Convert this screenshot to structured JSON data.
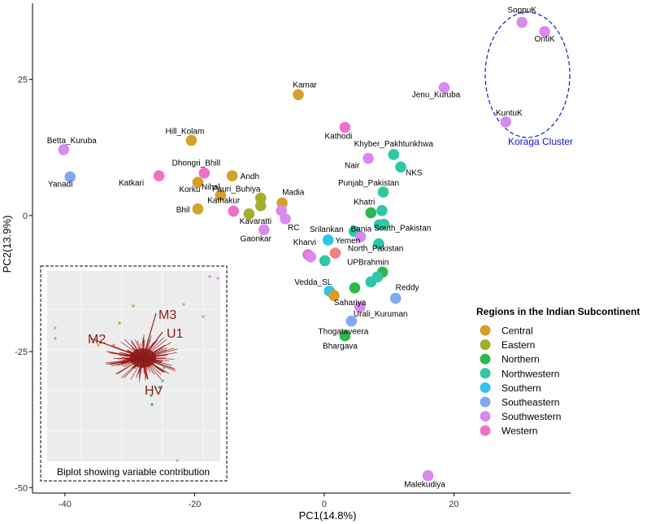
{
  "chart_data": {
    "type": "scatter",
    "xlabel": "PC1(14.8%)",
    "ylabel": "PC2(13.9%)",
    "xlim": [
      -45,
      38
    ],
    "ylim": [
      -51,
      39
    ],
    "x_ticks": [
      -40,
      -20,
      0,
      20
    ],
    "y_ticks": [
      -50,
      -25,
      0,
      25
    ],
    "grid": false,
    "legend": {
      "title": "Regions in the Indian Subcontinent",
      "position": "right",
      "entries": [
        {
          "name": "Central",
          "color": "#D4A02A"
        },
        {
          "name": "Eastern",
          "color": "#A3AE2E"
        },
        {
          "name": "Northern",
          "color": "#2DB84E"
        },
        {
          "name": "Northwestern",
          "color": "#2FC7A6"
        },
        {
          "name": "Southern",
          "color": "#2FC3E8"
        },
        {
          "name": "Southeastern",
          "color": "#7FAAF2"
        },
        {
          "name": "Southwestern",
          "color": "#D98AF0"
        },
        {
          "name": "Western",
          "color": "#F070C9"
        }
      ]
    },
    "points": [
      {
        "label": "SoppuK",
        "x": 30.5,
        "y": 35.5,
        "region": "Southwestern"
      },
      {
        "label": "OntiK",
        "x": 34,
        "y": 33.8,
        "region": "Southwestern"
      },
      {
        "label": "KuntuK",
        "x": 28,
        "y": 17.2,
        "region": "Southwestern"
      },
      {
        "label": "Jenu_Kuruba",
        "x": 18.5,
        "y": 23.5,
        "region": "Southwestern"
      },
      {
        "label": "Kamar",
        "x": -4,
        "y": 22.2,
        "region": "Central"
      },
      {
        "label": "Kathodi",
        "x": 3.2,
        "y": 16.2,
        "region": "Western"
      },
      {
        "label": "Hill_Kolam",
        "x": -20.5,
        "y": 13.8,
        "region": "Central"
      },
      {
        "label": "Betta_Kuruba",
        "x": -40.2,
        "y": 12.1,
        "region": "Southwestern"
      },
      {
        "label": "Yanadi",
        "x": -39.2,
        "y": 7.1,
        "region": "Southeastern"
      },
      {
        "label": "Katkari",
        "x": -25.5,
        "y": 7.3,
        "region": "Western"
      },
      {
        "label": "Dhongri_Bhill",
        "x": -18.5,
        "y": 7.8,
        "region": "Western"
      },
      {
        "label": "Andh",
        "x": -14.2,
        "y": 7.3,
        "region": "Central"
      },
      {
        "label": "Korku",
        "x": -19.5,
        "y": 6.1,
        "region": "Central"
      },
      {
        "label": "Nihal",
        "x": -16,
        "y": 3.7,
        "region": "Central"
      },
      {
        "label": "Bhil",
        "x": -19.5,
        "y": 1.2,
        "region": "Central"
      },
      {
        "label": "Kathakur",
        "x": -14,
        "y": 0.8,
        "region": "Western"
      },
      {
        "label": "Pauri_Buhiya",
        "x": -9.8,
        "y": 3.2,
        "region": "Eastern"
      },
      {
        "label": "",
        "x": -9.8,
        "y": 1.8,
        "region": "Eastern"
      },
      {
        "label": "Kavaratti",
        "x": -11.6,
        "y": 0.3,
        "region": "Eastern"
      },
      {
        "label": "Madia",
        "x": -6.5,
        "y": 2.3,
        "region": "Central"
      },
      {
        "label": "",
        "x": -6.6,
        "y": 0.9,
        "region": "Southwestern"
      },
      {
        "label": "RC",
        "x": -6,
        "y": -0.6,
        "region": "Southwestern"
      },
      {
        "label": "Gaonkar",
        "x": -9.3,
        "y": -2.6,
        "region": "Southwestern"
      },
      {
        "label": "Kharvi",
        "x": -2.5,
        "y": -7.2,
        "region": "Western"
      },
      {
        "label": "",
        "x": -2.1,
        "y": -7.6,
        "region": "Southwestern"
      },
      {
        "label": "Srilankan",
        "x": 0.6,
        "y": -4.5,
        "region": "Southern"
      },
      {
        "label": "Yemen",
        "x": 1.7,
        "y": -6.9,
        "region": "Yemen"
      },
      {
        "label": "",
        "x": 0.1,
        "y": -8.3,
        "region": "Northwestern"
      },
      {
        "label": "Vedda_SL",
        "x": 0.8,
        "y": -13.9,
        "region": "Southern"
      },
      {
        "label": "Sahariya",
        "x": 1.5,
        "y": -14.7,
        "region": "Central"
      },
      {
        "label": "Khyber_Pakhtunkhwa",
        "x": 10.7,
        "y": 11.2,
        "region": "Northwestern"
      },
      {
        "label": "Nair",
        "x": 6.8,
        "y": 10.5,
        "region": "Southwestern"
      },
      {
        "label": "NKS",
        "x": 11.8,
        "y": 8.9,
        "region": "Northwestern"
      },
      {
        "label": "Punjab_Pakistan",
        "x": 9.1,
        "y": 4.3,
        "region": "Northwestern"
      },
      {
        "label": "Khatri",
        "x": 7.2,
        "y": 0.5,
        "region": "Northern"
      },
      {
        "label": "",
        "x": 8.9,
        "y": 0.9,
        "region": "Northwestern"
      },
      {
        "label": "South_Pakistan",
        "x": 9.2,
        "y": -1.6,
        "region": "Northwestern"
      },
      {
        "label": "",
        "x": 8.5,
        "y": -1.7,
        "region": "Northwestern"
      },
      {
        "label": "Bania",
        "x": 4.6,
        "y": -2.9,
        "region": "Northwestern"
      },
      {
        "label": "",
        "x": 5.6,
        "y": -3.9,
        "region": "Southwestern"
      },
      {
        "label": "North_Pakistan",
        "x": 8.4,
        "y": -5.2,
        "region": "Northwestern"
      },
      {
        "label": "UPBrahmin",
        "x": 9,
        "y": -10.4,
        "region": "Northern"
      },
      {
        "label": "",
        "x": 8.2,
        "y": -11.3,
        "region": "Northwestern"
      },
      {
        "label": "",
        "x": 7.2,
        "y": -12.2,
        "region": "Northwestern"
      },
      {
        "label": "",
        "x": 4.7,
        "y": -13.3,
        "region": "Northern"
      },
      {
        "label": "Reddy",
        "x": 11,
        "y": -15.2,
        "region": "Southeastern"
      },
      {
        "label": "Urali_Kuruman",
        "x": 5.5,
        "y": -16.8,
        "region": "Southwestern"
      },
      {
        "label": "Thogataveera",
        "x": 4.2,
        "y": -19.4,
        "region": "Southeastern"
      },
      {
        "label": "Bhargava",
        "x": 3.2,
        "y": -22.1,
        "region": "Northern"
      },
      {
        "label": "Malekudiya",
        "x": 16,
        "y": -47.8,
        "region": "Southwestern"
      }
    ],
    "annotations": [
      {
        "text": "Koraga Cluster",
        "color": "#1414D2"
      }
    ],
    "inset": {
      "caption": "Biplot showing variable contribution",
      "vector_labels": [
        "M3",
        "U1",
        "M2",
        "HV"
      ]
    }
  }
}
